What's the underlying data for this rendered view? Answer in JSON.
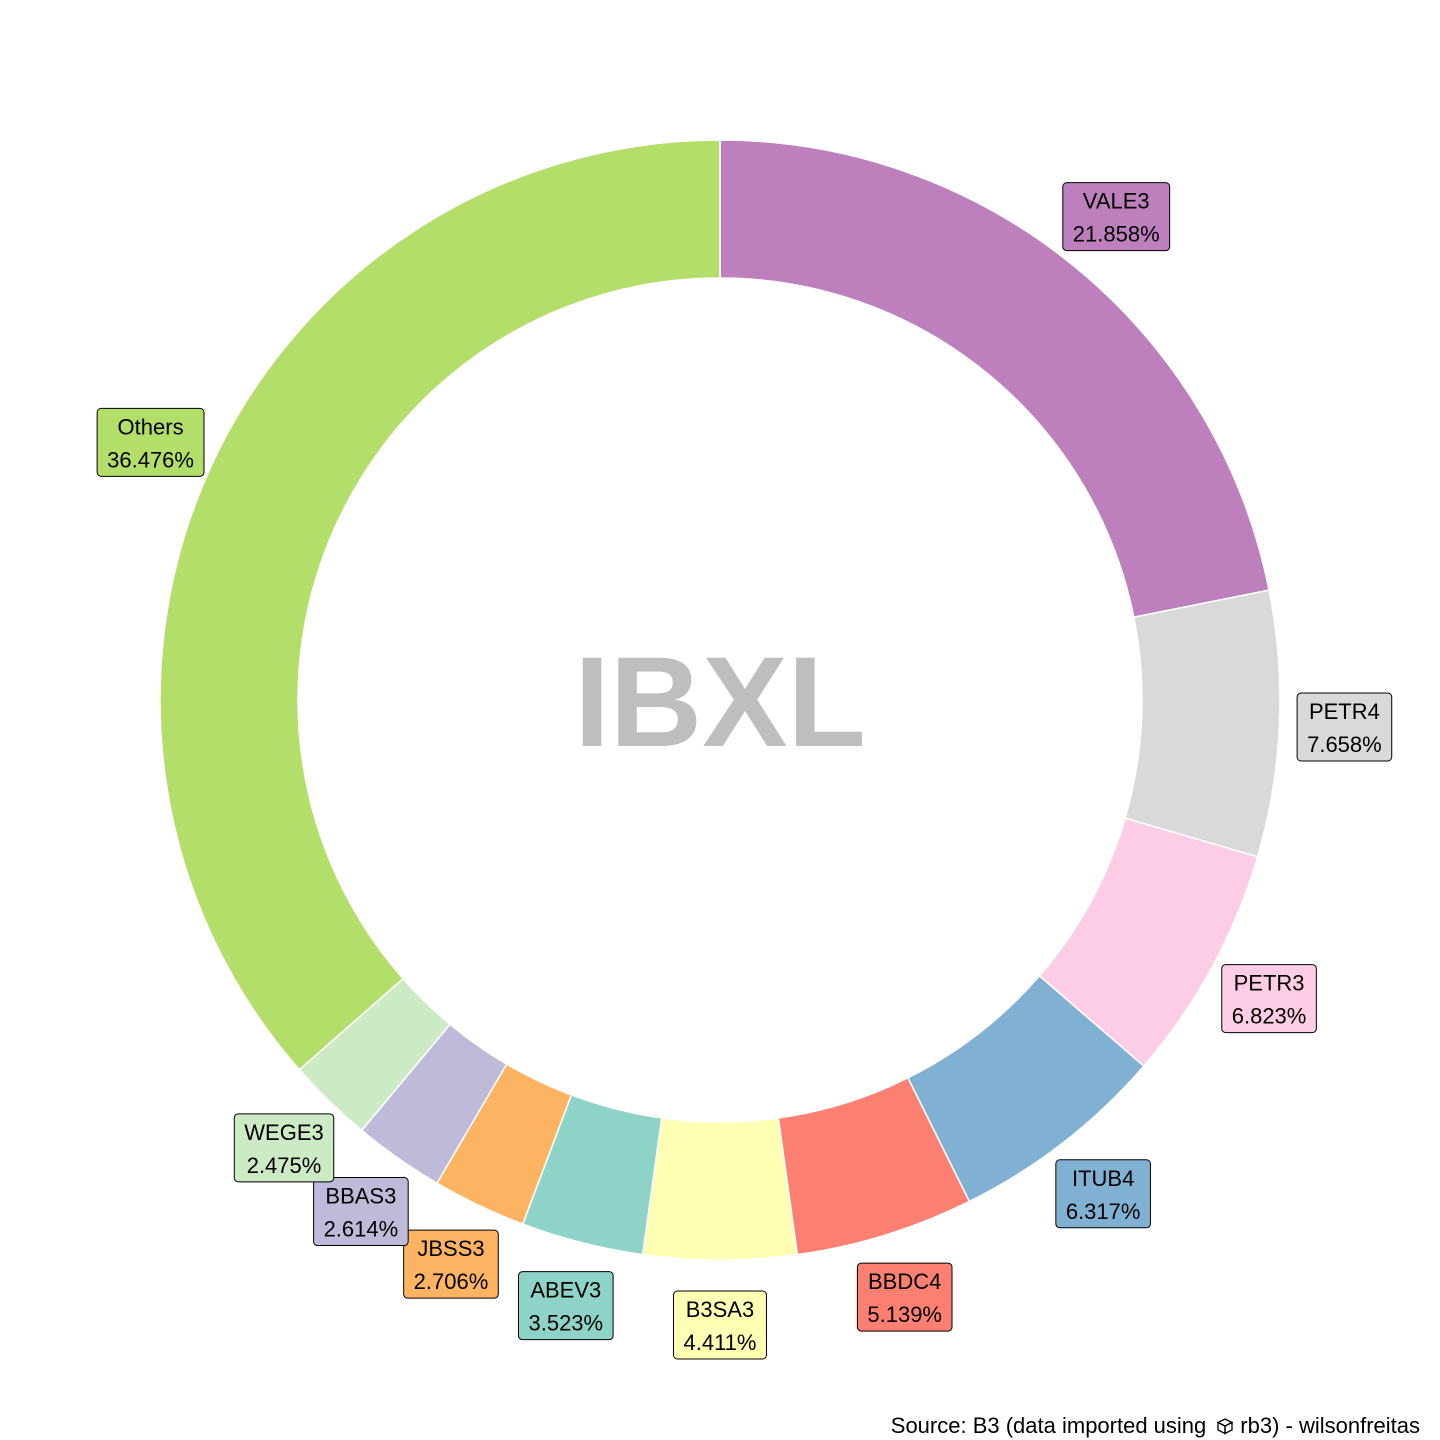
{
  "chart_data": {
    "type": "donut",
    "center_label": "IBXL",
    "unit": "%",
    "slices": [
      {
        "label": "VALE3",
        "value": 21.858,
        "display": "21.858%",
        "color": "#BE80BD"
      },
      {
        "label": "PETR4",
        "value": 7.658,
        "display": "7.658%",
        "color": "#D9D9D9"
      },
      {
        "label": "PETR3",
        "value": 6.823,
        "display": "6.823%",
        "color": "#FCCDE5"
      },
      {
        "label": "ITUB4",
        "value": 6.317,
        "display": "6.317%",
        "color": "#80B1D3"
      },
      {
        "label": "BBDC4",
        "value": 5.139,
        "display": "5.139%",
        "color": "#FB8072"
      },
      {
        "label": "B3SA3",
        "value": 4.411,
        "display": "4.411%",
        "color": "#FFFFB3"
      },
      {
        "label": "ABEV3",
        "value": 3.523,
        "display": "3.523%",
        "color": "#8DD3C7"
      },
      {
        "label": "JBSS3",
        "value": 2.706,
        "display": "2.706%",
        "color": "#FDB462"
      },
      {
        "label": "BBAS3",
        "value": 2.614,
        "display": "2.614%",
        "color": "#BEBADA"
      },
      {
        "label": "WEGE3",
        "value": 2.475,
        "display": "2.475%",
        "color": "#CCEBC5"
      },
      {
        "label": "Others",
        "value": 36.476,
        "display": "36.476%",
        "color": "#B3DE69"
      }
    ],
    "caption": {
      "prefix": "Source: B3 (data imported using",
      "package": "rb3",
      "suffix": ") - wilsonfreitas",
      "icon": "package-icon"
    }
  }
}
